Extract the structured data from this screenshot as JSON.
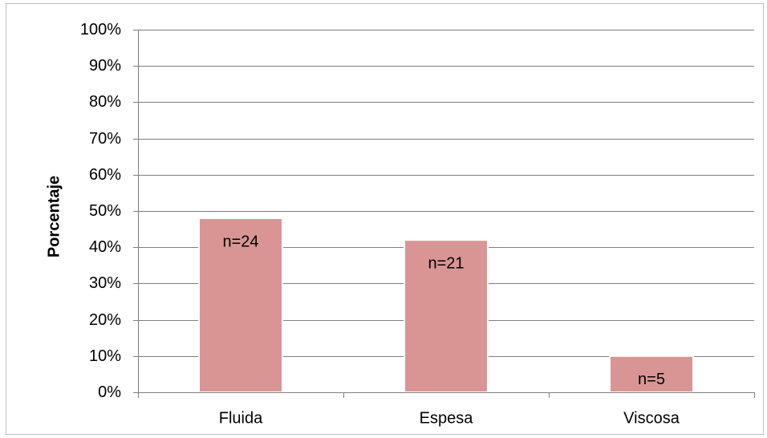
{
  "chart_data": {
    "type": "bar",
    "title": "",
    "xlabel": "",
    "ylabel": "Porcentaje",
    "ylim": [
      0,
      100
    ],
    "yticks": [
      "0%",
      "10%",
      "20%",
      "30%",
      "40%",
      "50%",
      "60%",
      "70%",
      "80%",
      "90%",
      "100%"
    ],
    "grid": true,
    "legend": "none",
    "categories": [
      "Fluida",
      "Espesa",
      "Viscosa"
    ],
    "values": [
      48,
      42,
      10
    ],
    "data_labels": [
      "n=24",
      "n=21",
      "n=5"
    ],
    "bar_color": "#d99594",
    "bar_edge_color": "#ffffff",
    "grid_color": "#7f7f7f"
  }
}
